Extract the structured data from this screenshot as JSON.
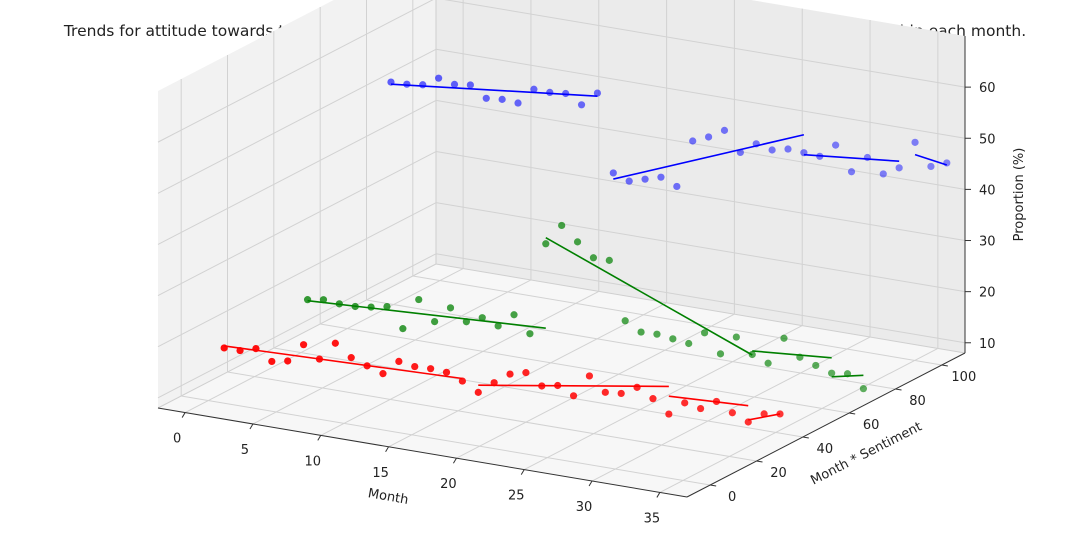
{
  "chart_data": {
    "type": "scatter",
    "title": "Trends for attitude towards tobacco by month. Z-axis represents the proportion of corresponding tweets within each month.",
    "xlabel": "Month",
    "ylabel": "Month * Sentiment",
    "zlabel": "Proportion (%)",
    "x_ticks": [
      "0",
      "5",
      "10",
      "15",
      "20",
      "25",
      "30",
      "35"
    ],
    "y_ticks": [
      "0",
      "20",
      "40",
      "60",
      "80",
      "100"
    ],
    "z_ticks": [
      "10",
      "20",
      "30",
      "40",
      "50",
      "60"
    ],
    "xlim": [
      -2,
      37
    ],
    "ylim": [
      -10,
      110
    ],
    "zlim": [
      8,
      70
    ],
    "grid": true,
    "series": [
      {
        "color": "#ff0000",
        "points": [
          {
            "x": 1,
            "y": 1,
            "z": 18.5
          },
          {
            "x": 2,
            "y": 2,
            "z": 18.2
          },
          {
            "x": 3,
            "y": 3,
            "z": 18.8
          },
          {
            "x": 4,
            "y": 4,
            "z": 16.5
          },
          {
            "x": 5,
            "y": 5,
            "z": 16.8
          },
          {
            "x": 6,
            "y": 6,
            "z": 20.2
          },
          {
            "x": 7,
            "y": 7,
            "z": 17.6
          },
          {
            "x": 8,
            "y": 8,
            "z": 20.9
          },
          {
            "x": 9,
            "y": 9,
            "z": 18.3
          },
          {
            "x": 10,
            "y": 10,
            "z": 16.9
          },
          {
            "x": 11,
            "y": 11,
            "z": 15.6
          },
          {
            "x": 12,
            "y": 12,
            "z": 18.2
          },
          {
            "x": 13,
            "y": 13,
            "z": 17.4
          },
          {
            "x": 14,
            "y": 14,
            "z": 17.2
          },
          {
            "x": 15,
            "y": 15,
            "z": 16.7
          },
          {
            "x": 16,
            "y": 16,
            "z": 15.2
          },
          {
            "x": 17,
            "y": 17,
            "z": 13.2
          },
          {
            "x": 18,
            "y": 18,
            "z": 15.3
          },
          {
            "x": 19,
            "y": 19,
            "z": 17.2
          },
          {
            "x": 20,
            "y": 20,
            "z": 17.7
          },
          {
            "x": 21,
            "y": 21,
            "z": 15.3
          },
          {
            "x": 22,
            "y": 22,
            "z": 15.6
          },
          {
            "x": 23,
            "y": 23,
            "z": 13.8
          },
          {
            "x": 24,
            "y": 24,
            "z": 17.9
          },
          {
            "x": 25,
            "y": 25,
            "z": 14.9
          },
          {
            "x": 26,
            "y": 26,
            "z": 14.9
          },
          {
            "x": 27,
            "y": 27,
            "z": 16.3
          },
          {
            "x": 28,
            "y": 28,
            "z": 14.3
          },
          {
            "x": 29,
            "y": 29,
            "z": 11.5
          },
          {
            "x": 30,
            "y": 30,
            "z": 13.9
          },
          {
            "x": 31,
            "y": 31,
            "z": 13.0
          },
          {
            "x": 32,
            "y": 32,
            "z": 14.6
          },
          {
            "x": 33,
            "y": 33,
            "z": 12.6
          },
          {
            "x": 34,
            "y": 34,
            "z": 11.0
          },
          {
            "x": 35,
            "y": 35,
            "z": 12.8
          },
          {
            "x": 36,
            "y": 36,
            "z": 13.0
          }
        ],
        "trend_segments": [
          {
            "x": [
              1,
              16
            ],
            "z": [
              18.9,
              15.7
            ]
          },
          {
            "x": [
              17,
              29
            ],
            "z": [
              14.6,
              16.9
            ]
          },
          {
            "x": [
              29,
              34
            ],
            "z": [
              15.0,
              14.2
            ]
          },
          {
            "x": [
              34,
              36
            ],
            "z": [
              11.4,
              13.0
            ]
          }
        ]
      },
      {
        "color": "#008000",
        "points": [
          {
            "x": 1,
            "y": 37,
            "z": 19.5
          },
          {
            "x": 2,
            "y": 38,
            "z": 19.7
          },
          {
            "x": 3,
            "y": 39,
            "z": 19.1
          },
          {
            "x": 4,
            "y": 40,
            "z": 18.8
          },
          {
            "x": 5,
            "y": 41,
            "z": 18.9
          },
          {
            "x": 6,
            "y": 42,
            "z": 19.2
          },
          {
            "x": 7,
            "y": 43,
            "z": 15.1
          },
          {
            "x": 8,
            "y": 44,
            "z": 21.0
          },
          {
            "x": 9,
            "y": 45,
            "z": 16.9
          },
          {
            "x": 10,
            "y": 46,
            "z": 19.8
          },
          {
            "x": 11,
            "y": 47,
            "z": 17.3
          },
          {
            "x": 12,
            "y": 48,
            "z": 18.3
          },
          {
            "x": 13,
            "y": 49,
            "z": 16.9
          },
          {
            "x": 14,
            "y": 50,
            "z": 19.3
          },
          {
            "x": 15,
            "y": 51,
            "z": 15.8
          },
          {
            "x": 16,
            "y": 52,
            "z": 33.6
          },
          {
            "x": 17,
            "y": 53,
            "z": 37.4
          },
          {
            "x": 18,
            "y": 54,
            "z": 34.4
          },
          {
            "x": 19,
            "y": 55,
            "z": 31.5
          },
          {
            "x": 20,
            "y": 56,
            "z": 31.2
          },
          {
            "x": 21,
            "y": 57,
            "z": 19.6
          },
          {
            "x": 22,
            "y": 58,
            "z": 17.6
          },
          {
            "x": 23,
            "y": 59,
            "z": 17.4
          },
          {
            "x": 24,
            "y": 60,
            "z": 16.7
          },
          {
            "x": 25,
            "y": 61,
            "z": 16.0
          },
          {
            "x": 26,
            "y": 62,
            "z": 18.3
          },
          {
            "x": 27,
            "y": 63,
            "z": 14.4
          },
          {
            "x": 28,
            "y": 64,
            "z": 17.9
          },
          {
            "x": 29,
            "y": 65,
            "z": 14.7
          },
          {
            "x": 30,
            "y": 66,
            "z": 13.2
          },
          {
            "x": 31,
            "y": 67,
            "z": 18.3
          },
          {
            "x": 32,
            "y": 68,
            "z": 14.8
          },
          {
            "x": 33,
            "y": 69,
            "z": 13.4
          },
          {
            "x": 34,
            "y": 70,
            "z": 12.1
          },
          {
            "x": 35,
            "y": 71,
            "z": 12.2
          },
          {
            "x": 36,
            "y": 72,
            "z": 9.5
          }
        ],
        "trend_segments": [
          {
            "x": [
              1,
              16
            ],
            "z": [
              19.3,
              17.1
            ]
          },
          {
            "x": [
              16,
              29
            ],
            "z": [
              34.8,
              14.6
            ]
          },
          {
            "x": [
              29,
              34
            ],
            "z": [
              15.4,
              15.1
            ]
          },
          {
            "x": [
              34,
              36
            ],
            "z": [
              11.4,
              12.1
            ]
          }
        ]
      },
      {
        "color": "#0000ff",
        "points": [
          {
            "x": 1,
            "y": 73,
            "z": 53.6
          },
          {
            "x": 2,
            "y": 74,
            "z": 53.4
          },
          {
            "x": 3,
            "y": 75,
            "z": 53.5
          },
          {
            "x": 4,
            "y": 76,
            "z": 55.0
          },
          {
            "x": 5,
            "y": 77,
            "z": 54.0
          },
          {
            "x": 6,
            "y": 78,
            "z": 54.1
          },
          {
            "x": 7,
            "y": 79,
            "z": 51.7
          },
          {
            "x": 8,
            "y": 80,
            "z": 51.7
          },
          {
            "x": 9,
            "y": 81,
            "z": 51.2
          },
          {
            "x": 10,
            "y": 82,
            "z": 54.1
          },
          {
            "x": 11,
            "y": 83,
            "z": 53.7
          },
          {
            "x": 12,
            "y": 84,
            "z": 53.7
          },
          {
            "x": 13,
            "y": 85,
            "z": 51.7
          },
          {
            "x": 14,
            "y": 86,
            "z": 54.2
          },
          {
            "x": 15,
            "y": 87,
            "z": 38.8
          },
          {
            "x": 16,
            "y": 88,
            "z": 37.4
          },
          {
            "x": 17,
            "y": 89,
            "z": 38.0
          },
          {
            "x": 18,
            "y": 90,
            "z": 38.6
          },
          {
            "x": 19,
            "y": 91,
            "z": 37.0
          },
          {
            "x": 20,
            "y": 92,
            "z": 46.1
          },
          {
            "x": 21,
            "y": 93,
            "z": 47.1
          },
          {
            "x": 22,
            "y": 94,
            "z": 48.6
          },
          {
            "x": 23,
            "y": 95,
            "z": 44.5
          },
          {
            "x": 24,
            "y": 96,
            "z": 46.4
          },
          {
            "x": 25,
            "y": 97,
            "z": 45.4
          },
          {
            "x": 26,
            "y": 98,
            "z": 45.8
          },
          {
            "x": 27,
            "y": 99,
            "z": 45.3
          },
          {
            "x": 28,
            "y": 100,
            "z": 44.8
          },
          {
            "x": 29,
            "y": 101,
            "z": 47.2
          },
          {
            "x": 30,
            "y": 102,
            "z": 42.2
          },
          {
            "x": 31,
            "y": 103,
            "z": 45.2
          },
          {
            "x": 32,
            "y": 104,
            "z": 42.2
          },
          {
            "x": 33,
            "y": 105,
            "z": 43.6
          },
          {
            "x": 34,
            "y": 106,
            "z": 48.8
          },
          {
            "x": 35,
            "y": 107,
            "z": 44.3
          },
          {
            "x": 36,
            "y": 108,
            "z": 45.2
          }
        ],
        "trend_segments": [
          {
            "x": [
              1,
              14
            ],
            "z": [
              53.2,
              53.6
            ]
          },
          {
            "x": [
              15,
              27
            ],
            "z": [
              37.6,
              48.8
            ]
          },
          {
            "x": [
              27,
              33
            ],
            "z": [
              44.9,
              44.9
            ]
          },
          {
            "x": [
              34,
              36
            ],
            "z": [
              46.4,
              44.8
            ]
          }
        ]
      }
    ]
  }
}
